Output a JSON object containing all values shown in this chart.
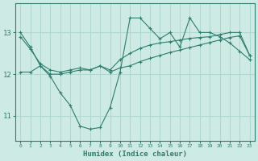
{
  "xlabel": "Humidex (Indice chaleur)",
  "background_color": "#ceeae4",
  "grid_color": "#b0d8d0",
  "line_color": "#2e7d6e",
  "x_values": [
    0,
    1,
    2,
    3,
    4,
    5,
    6,
    7,
    8,
    9,
    10,
    11,
    12,
    13,
    14,
    15,
    16,
    17,
    18,
    19,
    20,
    21,
    22,
    23
  ],
  "line1": [
    13.0,
    12.65,
    12.2,
    11.95,
    11.55,
    11.25,
    10.75,
    10.68,
    10.72,
    11.2,
    12.05,
    13.35,
    13.35,
    13.1,
    12.85,
    13.0,
    12.65,
    13.35,
    13.0,
    13.0,
    12.9,
    12.75,
    12.55,
    12.35
  ],
  "line2": [
    12.9,
    12.6,
    12.25,
    12.1,
    12.05,
    12.1,
    12.15,
    12.1,
    12.2,
    12.1,
    12.35,
    12.5,
    12.62,
    12.7,
    12.75,
    12.78,
    12.82,
    12.86,
    12.88,
    12.9,
    12.95,
    13.0,
    13.0,
    12.45
  ],
  "line3": [
    12.05,
    12.05,
    12.2,
    12.0,
    12.0,
    12.05,
    12.1,
    12.1,
    12.2,
    12.05,
    12.15,
    12.2,
    12.3,
    12.38,
    12.45,
    12.52,
    12.58,
    12.64,
    12.7,
    12.76,
    12.82,
    12.88,
    12.92,
    12.45
  ],
  "ylim": [
    10.4,
    13.7
  ],
  "yticks": [
    11,
    12,
    13
  ],
  "xticks": [
    0,
    1,
    2,
    3,
    4,
    5,
    6,
    7,
    8,
    9,
    10,
    11,
    12,
    13,
    14,
    15,
    16,
    17,
    18,
    19,
    20,
    21,
    22,
    23
  ]
}
